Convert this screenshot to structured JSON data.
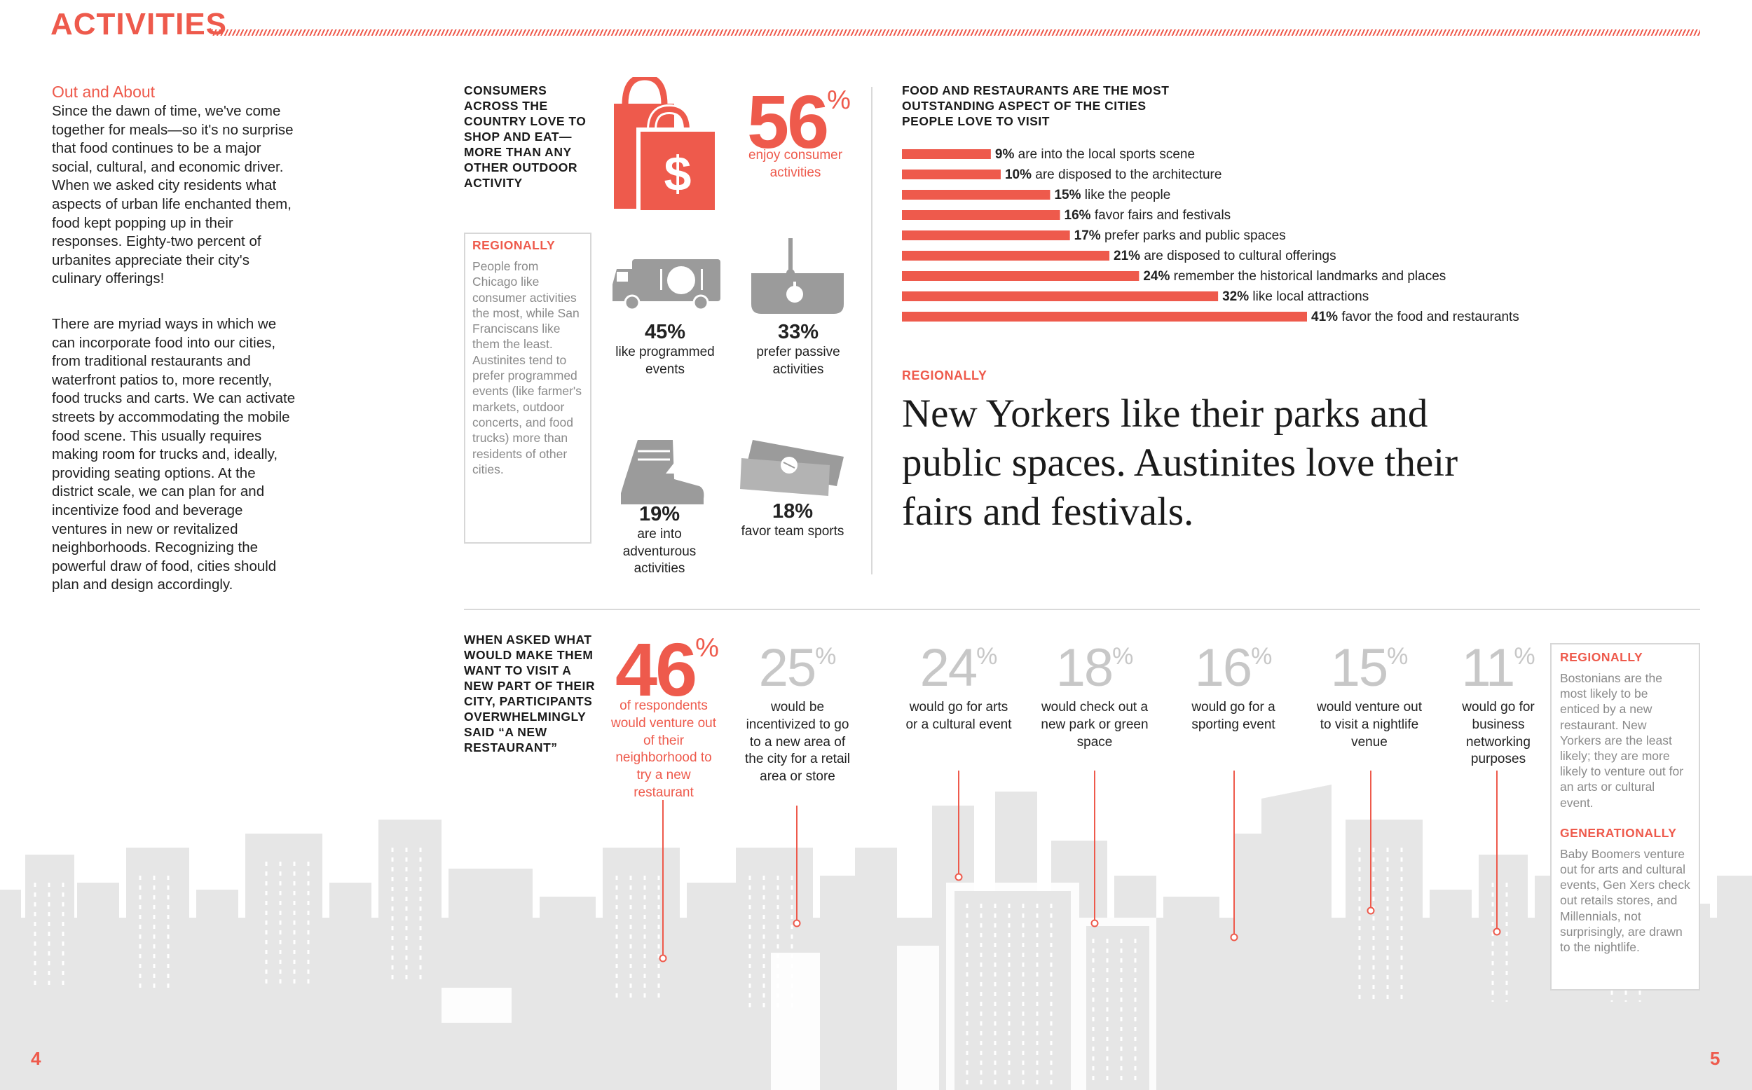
{
  "header": {
    "title": "ACTIVITIES"
  },
  "intro": {
    "heading": "Out and About",
    "p1": "Since the dawn of time, we've come together for meals—so it's no surprise that food continues to be a major social, cultural, and economic driver. When we asked city residents what aspects of urban life enchanted them, food kept popping up in their responses. Eighty-two percent of urbanites appreciate their city's culinary offerings!",
    "p2": "There are myriad ways in which we can incorporate food into our cities, from traditional restaurants and waterfront patios to, more recently, food trucks and carts. We can activate streets by accommodating the mobile food scene. This usually requires making room for trucks and, ideally, providing seating options. At the district scale, we can plan for and incentivize food and beverage ventures in new or revitalized neighborhoods. Recognizing the powerful draw of food, cities should plan and design accordingly."
  },
  "shop": {
    "text": "CONSUMERS ACROSS THE COUNTRY LOVE TO SHOP AND EAT— MORE THAN ANY OTHER OUTDOOR ACTIVITY",
    "pct": "56",
    "pct_sign": "%",
    "pct_caption": "enjoy consumer activities"
  },
  "regional_box_1": {
    "head": "REGIONALLY",
    "text": "People from Chicago like consumer activities the most, while San Franciscans like them the least. Austinites tend to prefer programmed events (like farmer's markets, outdoor concerts, and food trucks) more than residents of other cities."
  },
  "stats": [
    {
      "num": "45%",
      "caption": "like programmed events",
      "icon": "food-truck-icon"
    },
    {
      "num": "33%",
      "caption": "prefer passive activities",
      "icon": "picnic-basket-icon"
    },
    {
      "num": "19%",
      "caption": "are into adventurous activities",
      "icon": "hiking-boot-icon"
    },
    {
      "num": "18%",
      "caption": "favor team sports",
      "icon": "ticket-icon"
    }
  ],
  "colors": {
    "accent": "#ee5a4c",
    "icon_gray": "#9b9b9b",
    "light_gray": "#c7c7c7",
    "skyline": "#e6e6e6"
  },
  "chart_data": {
    "type": "bar",
    "orientation": "horizontal",
    "title": "FOOD AND RESTAURANTS ARE THE MOST OUTSTANDING ASPECT OF THE CITIES PEOPLE LOVE TO VISIT",
    "unit": "%",
    "categories": [
      "are into the local sports scene",
      "are disposed to the architecture",
      "like the people",
      "favor fairs and festivals",
      "prefer parks and public spaces",
      "are disposed to cultural offerings",
      "remember the historical landmarks and places",
      "like local attractions",
      "favor the food and restaurants"
    ],
    "values": [
      9,
      10,
      15,
      16,
      17,
      21,
      24,
      32,
      41
    ],
    "xlim": [
      0,
      41
    ],
    "grid": false,
    "legend": "none"
  },
  "regionally_2": "REGIONALLY",
  "quote": "New Yorkers like their parks and public spaces. Austinites love their fairs and festivals.",
  "ask": {
    "text": "WHEN ASKED WHAT WOULD MAKE THEM WANT TO VISIT A NEW PART OF THEIR CITY, PARTICIPANTS OVERWHELMINGLY SAID “A NEW RESTAURANT”",
    "pct": "46",
    "pct_sign": "%",
    "pct_caption": "of respondents would venture out of their neighborhood to try a new restaurant"
  },
  "destinations": [
    {
      "pct": "25",
      "sign": "%",
      "caption": "would be incentivized to go to a new area of the city for a retail area or store"
    },
    {
      "pct": "24",
      "sign": "%",
      "caption": "would go for arts or a cultural event"
    },
    {
      "pct": "18",
      "sign": "%",
      "caption": "would check out a new park or green space"
    },
    {
      "pct": "16",
      "sign": "%",
      "caption": "would go for a sporting event"
    },
    {
      "pct": "15",
      "sign": "%",
      "caption": "would venture out to visit a nightlife venue"
    },
    {
      "pct": "11",
      "sign": "%",
      "caption": "would go for business networking purposes"
    }
  ],
  "regional_box_2": {
    "head": "REGIONALLY",
    "text": "Bostonians are the most likely to be enticed by a new restaurant. New Yorkers are the least likely; they are more likely to venture out for an arts or cultural event.",
    "gen_head": "GENERATIONALLY",
    "gen_text": "Baby Boomers venture out for arts and cultural events, Gen Xers check out retails stores, and Millennials, not surprisingly, are drawn to the nightlife."
  },
  "pages": {
    "left": "4",
    "right": "5"
  }
}
